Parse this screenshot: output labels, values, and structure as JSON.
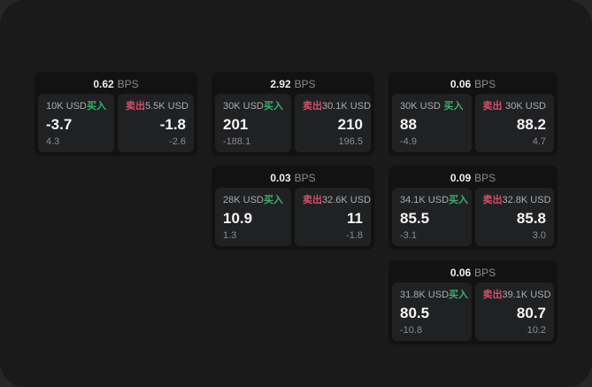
{
  "page": {
    "background_color": "#262626",
    "panel_color": "#1a1a1a",
    "card_color": "#121212",
    "tile_color": "#202123",
    "buy_color": "#3dae6b",
    "sell_color": "#cf5168"
  },
  "labels": {
    "bps_unit": "BPS",
    "buy": "买入",
    "sell": "卖出"
  },
  "cards": [
    {
      "bps": "0.62",
      "buy": {
        "amount": "10K USD",
        "value": "-3.7",
        "delta": "4.3"
      },
      "sell": {
        "amount": "5.5K USD",
        "value": "-1.8",
        "delta": "-2.6"
      }
    },
    {
      "bps": "2.92",
      "buy": {
        "amount": "30K USD",
        "value": "201",
        "delta": "-188.1"
      },
      "sell": {
        "amount": "30.1K USD",
        "value": "210",
        "delta": "196.5"
      }
    },
    {
      "bps": "0.06",
      "buy": {
        "amount": "30K USD",
        "value": "88",
        "delta": "-4.9"
      },
      "sell": {
        "amount": "30K USD",
        "value": "88.2",
        "delta": "4.7"
      }
    },
    {
      "bps": "0.03",
      "buy": {
        "amount": "28K USD",
        "value": "10.9",
        "delta": "1.3"
      },
      "sell": {
        "amount": "32.6K USD",
        "value": "11",
        "delta": "-1.8"
      }
    },
    {
      "bps": "0.09",
      "buy": {
        "amount": "34.1K USD",
        "value": "85.5",
        "delta": "-3.1"
      },
      "sell": {
        "amount": "32.8K USD",
        "value": "85.8",
        "delta": "3.0"
      }
    },
    {
      "bps": "0.06",
      "buy": {
        "amount": "31.8K USD",
        "value": "80.5",
        "delta": "-10.8"
      },
      "sell": {
        "amount": "39.1K USD",
        "value": "80.7",
        "delta": "10.2"
      }
    }
  ],
  "layout_positions": [
    {
      "col": 0,
      "row": 0
    },
    {
      "col": 1,
      "row": 0
    },
    {
      "col": 2,
      "row": 0
    },
    {
      "col": 1,
      "row": 1
    },
    {
      "col": 2,
      "row": 1
    },
    {
      "col": 2,
      "row": 2
    }
  ]
}
